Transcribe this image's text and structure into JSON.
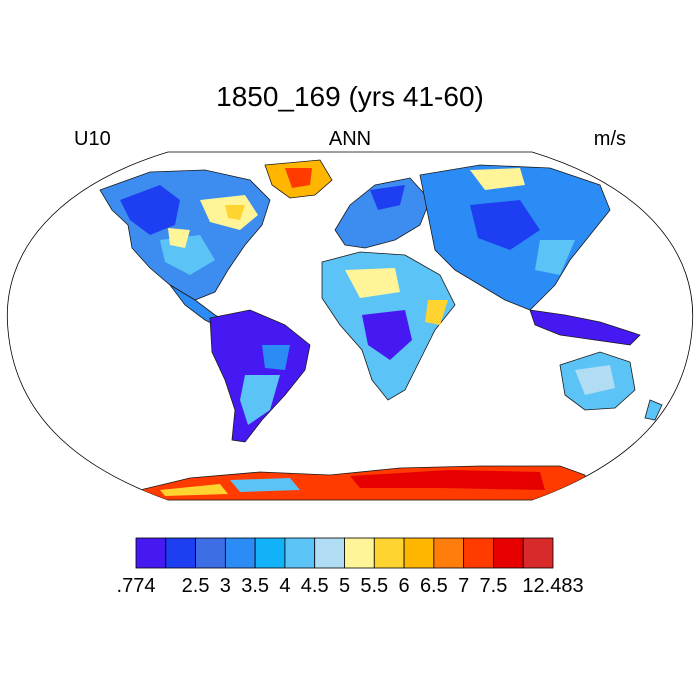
{
  "title": "1850_169 (yrs 41-60)",
  "labels": {
    "left": "U10",
    "center": "ANN",
    "right": "m/s"
  },
  "colorbar": {
    "colors": [
      "#4619f2",
      "#1e3ef2",
      "#3d6ee6",
      "#2b8cf6",
      "#12b2f8",
      "#5bc3f5",
      "#b0dcf4",
      "#fff598",
      "#ffd431",
      "#ffb600",
      "#ff7d0a",
      "#ff3b00",
      "#e70000",
      "#d82a2a"
    ],
    "tick_labels": [
      ".774",
      "2.5",
      "3",
      "3.5",
      "4",
      "4.5",
      "5",
      "5.5",
      "6",
      "6.5",
      "7",
      "7.5",
      "12.483"
    ],
    "min": 0.774,
    "max": 12.483
  }
}
